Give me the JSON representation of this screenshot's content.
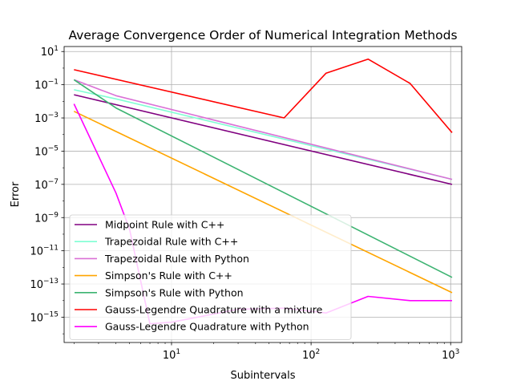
{
  "chart_data": {
    "type": "line",
    "title": "Average Convergence Order of Numerical Integration Methods",
    "xlabel": "Subintervals",
    "ylabel": "Error",
    "xscale": "log",
    "yscale": "log",
    "xlim": [
      1.7,
      1200
    ],
    "ylim": [
      3e-17,
      20
    ],
    "grid": true,
    "legend_position": "lower-left",
    "x_ticks": [
      {
        "value": 10,
        "base": "10",
        "exp": "1"
      },
      {
        "value": 100,
        "base": "10",
        "exp": "2"
      },
      {
        "value": 1000,
        "base": "10",
        "exp": "3"
      }
    ],
    "y_ticks": [
      {
        "value": 10,
        "base": "10",
        "exp": "1"
      },
      {
        "value": 0.1,
        "base": "10",
        "exp": "−1"
      },
      {
        "value": 0.001,
        "base": "10",
        "exp": "−3"
      },
      {
        "value": 1e-05,
        "base": "10",
        "exp": "−5"
      },
      {
        "value": 1e-07,
        "base": "10",
        "exp": "−7"
      },
      {
        "value": 1e-09,
        "base": "10",
        "exp": "−9"
      },
      {
        "value": 1e-11,
        "base": "10",
        "exp": "−11"
      },
      {
        "value": 1e-13,
        "base": "10",
        "exp": "−13"
      },
      {
        "value": 1e-15,
        "base": "10",
        "exp": "−15"
      }
    ],
    "series": [
      {
        "name": "Midpoint Rule with C++",
        "color": "#800080",
        "x": [
          2,
          1024
        ],
        "y": [
          0.025,
          1e-07
        ]
      },
      {
        "name": "Trapezoidal Rule with C++",
        "color": "#7fffd4",
        "x": [
          2,
          4,
          1024
        ],
        "y": [
          0.05,
          0.014,
          2e-07
        ]
      },
      {
        "name": "Trapezoidal Rule with Python",
        "color": "#da70d6",
        "x": [
          2,
          4,
          1024
        ],
        "y": [
          0.2,
          0.022,
          2e-07
        ]
      },
      {
        "name": "Simpson's Rule with C++",
        "color": "#ffa500",
        "x": [
          2,
          1024
        ],
        "y": [
          0.0025,
          3e-14
        ]
      },
      {
        "name": "Simpson's Rule with Python",
        "color": "#3cb371",
        "x": [
          2,
          4,
          1024
        ],
        "y": [
          0.2,
          0.004,
          2.5e-13
        ]
      },
      {
        "name": "Gauss-Legendre Quadrature with a mixture",
        "color": "#ff0000",
        "x": [
          2,
          64,
          128,
          256,
          512,
          1024
        ],
        "y": [
          0.8,
          0.001,
          0.5,
          3.5,
          0.12,
          0.00013
        ]
      },
      {
        "name": "Gauss-Legendre Quadrature with Python",
        "color": "#ff00ff",
        "x": [
          2,
          4,
          5,
          7,
          10,
          30,
          64,
          128,
          256,
          512,
          1024
        ],
        "y": [
          0.007,
          3e-08,
          2e-10,
          4e-16,
          5e-16,
          3e-15,
          3.5e-15,
          1.8e-15,
          1.8e-14,
          1e-14,
          1e-14
        ]
      }
    ]
  }
}
